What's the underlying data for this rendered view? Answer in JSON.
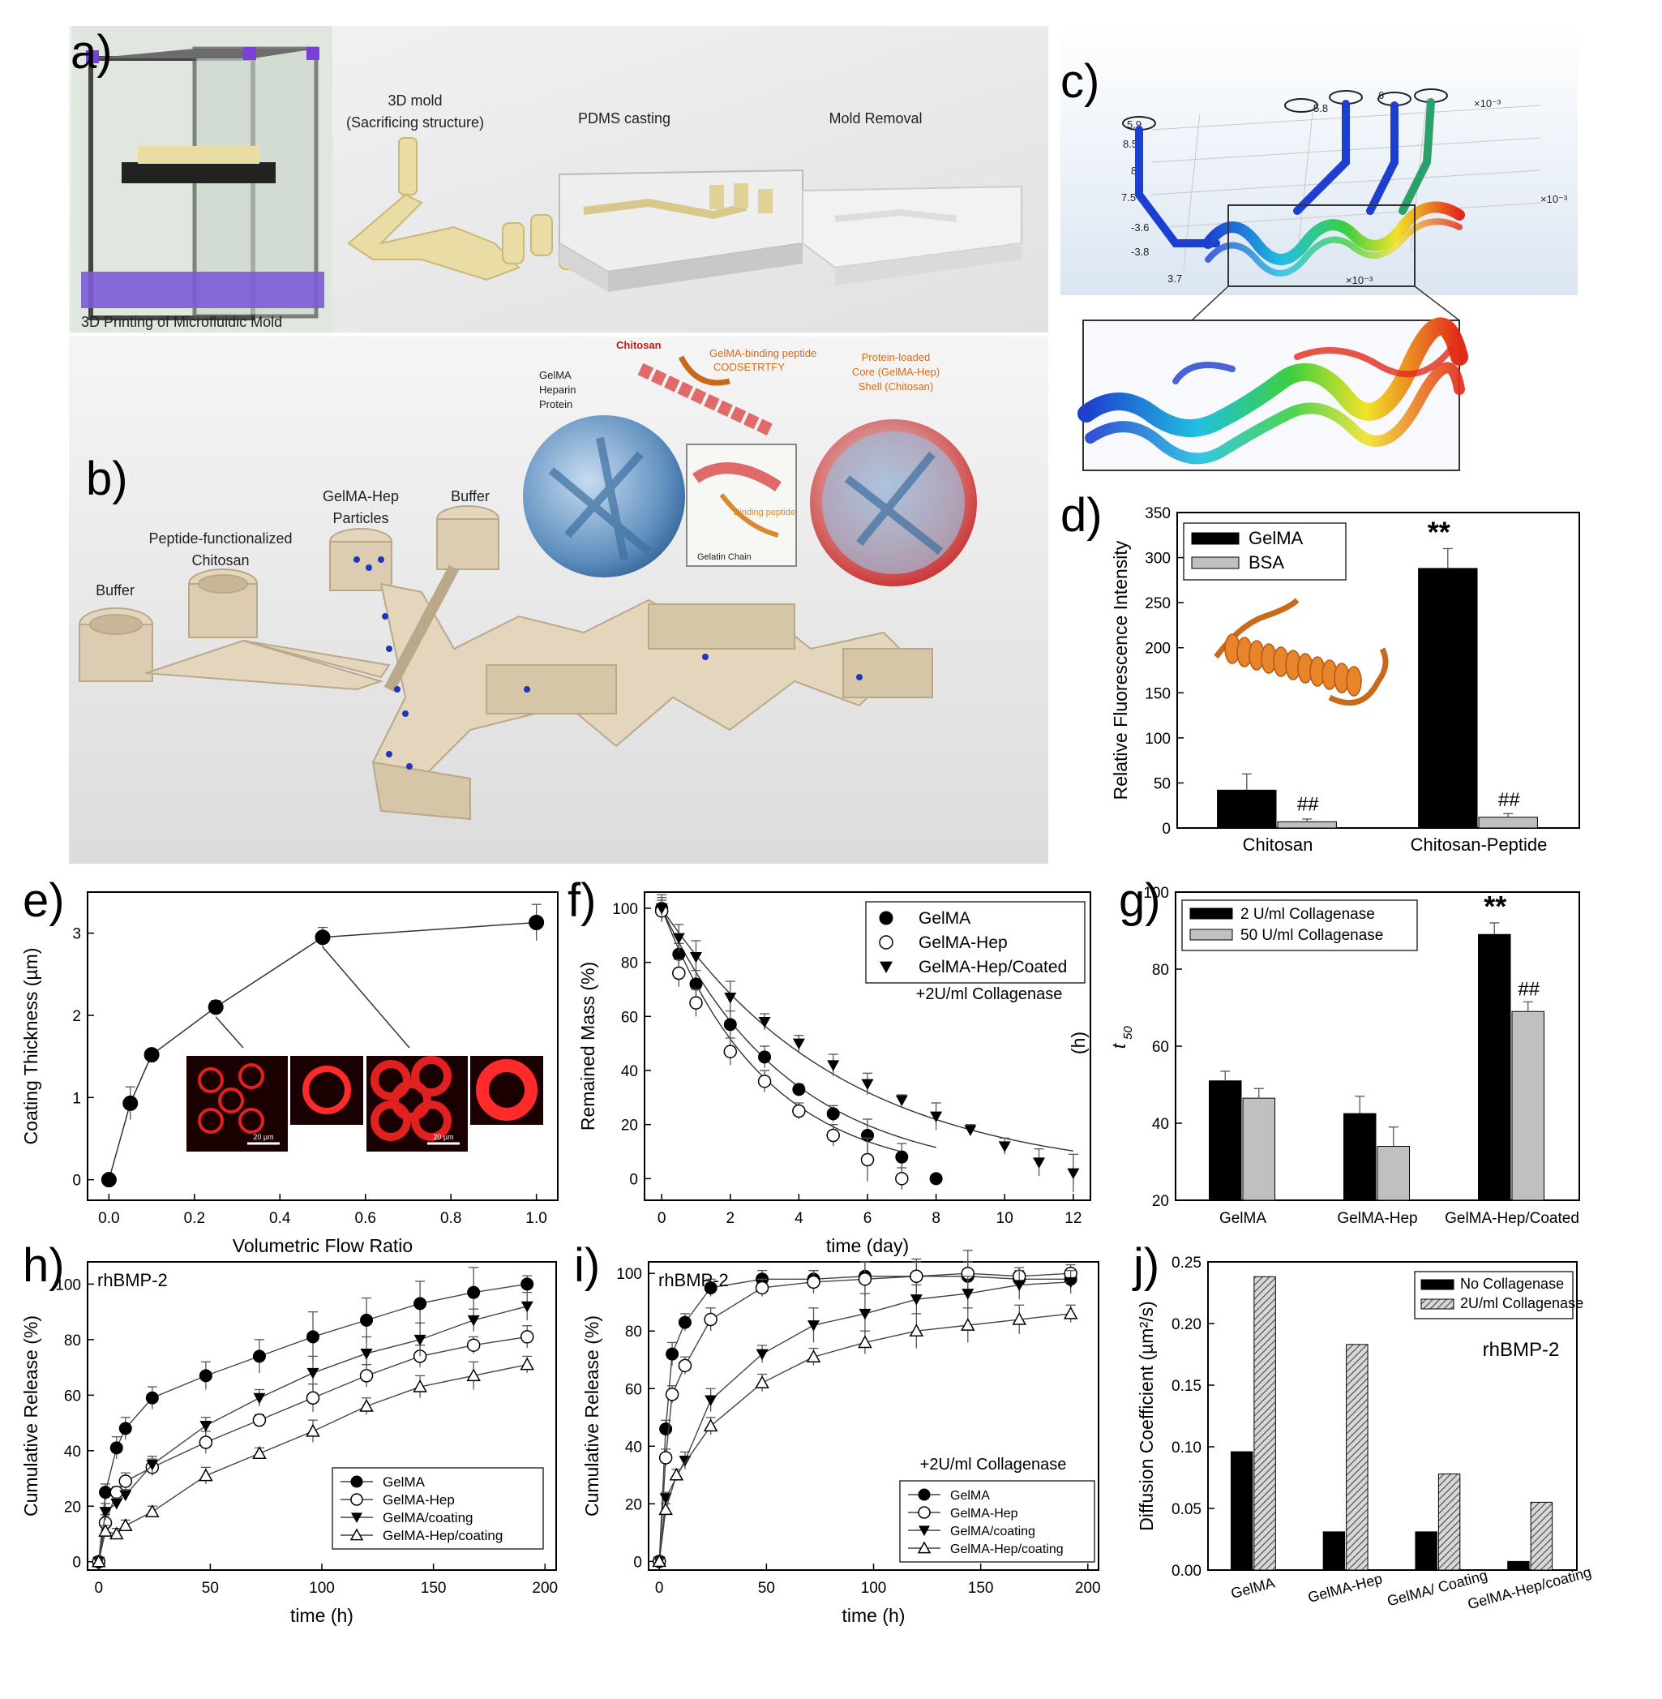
{
  "panels": {
    "a": {
      "letter": "a)",
      "captions": [
        "3D mold",
        "(Sacrificing structure)",
        "PDMS casting",
        "Mold Removal",
        "3D Printing of Microfluidic Mold"
      ]
    },
    "b": {
      "letter": "b)",
      "inlets": [
        "Buffer",
        "Peptide-functionalized",
        "Chitosan",
        "GelMA-Hep",
        "Particles",
        "Buffer"
      ],
      "labels": [
        "Chitosan",
        "GelMA-binding peptide",
        "CODSETRTFY",
        "GelMA",
        "Heparin",
        "Protein",
        "Protein-loaded",
        "Core (GelMA-Hep)",
        "Shell (Chitosan)",
        "Binding peptide",
        "Gelatin Chain"
      ]
    },
    "c": {
      "letter": "c)",
      "axis_marks": [
        "5.9",
        "5.8",
        "6",
        "8.5",
        "8",
        "7.5",
        "-3.6",
        "-3.8",
        "3.7",
        "×10⁻³",
        "×10⁻³",
        "×10⁻³"
      ]
    }
  },
  "chart_data": [
    {
      "id": "d",
      "letter": "d)",
      "type": "bar",
      "categories": [
        "Chitosan",
        "Chitosan-Peptide"
      ],
      "series": [
        {
          "name": "GelMA",
          "values": [
            42,
            288
          ],
          "errors": [
            18,
            22
          ],
          "color": "#000000"
        },
        {
          "name": "BSA",
          "values": [
            7,
            12
          ],
          "errors": [
            3,
            4
          ],
          "color": "#c0c0c0"
        }
      ],
      "ylabel": "Relative Fluorescence Intensity",
      "ylim": [
        0,
        350
      ],
      "yticks": [
        0,
        50,
        100,
        150,
        200,
        250,
        300,
        350
      ],
      "annotations": [
        "**",
        "##",
        "##"
      ],
      "legend": "top-left"
    },
    {
      "id": "e",
      "letter": "e)",
      "type": "line",
      "x": [
        0,
        0.05,
        0.1,
        0.25,
        0.5,
        1.0
      ],
      "y": [
        0,
        0.93,
        1.52,
        2.1,
        2.95,
        3.13
      ],
      "yerr": [
        0.03,
        0.2,
        0.05,
        0.08,
        0.12,
        0.22
      ],
      "xlabel": "Volumetric Flow Ratio",
      "ylabel": "Coating Thickness (µm)",
      "xlim": [
        -0.05,
        1.05
      ],
      "ylim": [
        -0.25,
        3.5
      ],
      "xticks": [
        "0.0",
        "0.2",
        "0.4",
        "0.6",
        "0.8",
        "1.0"
      ],
      "yticks": [
        "0",
        "1",
        "2",
        "3"
      ],
      "scale_bars": [
        "20 µm",
        "20 µm"
      ]
    },
    {
      "id": "f",
      "letter": "f)",
      "type": "scatter",
      "xlabel": "time (day)",
      "ylabel": "Remained Mass (%)",
      "xlim": [
        -0.5,
        12.5
      ],
      "ylim": [
        -8,
        106
      ],
      "xticks": [
        "0",
        "2",
        "4",
        "6",
        "8",
        "10",
        "12"
      ],
      "yticks": [
        "0",
        "20",
        "40",
        "60",
        "80",
        "100"
      ],
      "annotation": "+2U/ml Collagenase",
      "legend": "top-right",
      "series": [
        {
          "name": "GelMA",
          "marker": "filled-circle",
          "x": [
            0,
            0.5,
            1,
            2,
            3,
            4,
            5,
            6,
            7,
            8
          ],
          "y": [
            100,
            83,
            72,
            57,
            45,
            33,
            24,
            16,
            8,
            0
          ],
          "yerr": [
            4,
            4,
            5,
            5,
            4,
            2,
            3,
            6,
            5,
            0
          ]
        },
        {
          "name": "GelMA-Hep",
          "marker": "open-circle",
          "x": [
            0,
            0.5,
            1,
            2,
            3,
            4,
            5,
            6,
            7
          ],
          "y": [
            99,
            76,
            65,
            47,
            36,
            25,
            16,
            7,
            0
          ],
          "yerr": [
            4,
            5,
            5,
            5,
            4,
            3,
            4,
            8,
            4
          ]
        },
        {
          "name": "GelMA-Hep/Coated",
          "marker": "filled-triangle-down",
          "x": [
            0,
            0.5,
            1,
            2,
            3,
            4,
            5,
            6,
            7,
            8,
            9,
            10,
            11,
            12
          ],
          "y": [
            100,
            89,
            82,
            67,
            58,
            50,
            42,
            35,
            29,
            23,
            18,
            12,
            6,
            2
          ],
          "yerr": [
            5,
            5,
            6,
            6,
            3,
            3,
            4,
            4,
            2,
            5,
            2,
            3,
            5,
            7
          ]
        }
      ]
    },
    {
      "id": "g",
      "letter": "g)",
      "type": "bar",
      "categories": [
        "GelMA",
        "GelMA-Hep",
        "GelMA-Hep/Coated"
      ],
      "series": [
        {
          "name": "2  U/ml Collagenase",
          "values": [
            51,
            42.5,
            89
          ],
          "errors": [
            2.5,
            4.5,
            3
          ],
          "color": "#000000"
        },
        {
          "name": "50 U/ml Collagenase",
          "values": [
            46.5,
            34,
            69
          ],
          "errors": [
            2.5,
            5,
            2.5
          ],
          "color": "#c0c0c0"
        }
      ],
      "ylabel": "t50 (h)",
      "ylabel_main": "t",
      "ylabel_sub": "50",
      "ylabel_unit": "(h)",
      "ylim": [
        20,
        100
      ],
      "yticks": [
        20,
        40,
        60,
        80,
        100
      ],
      "annotations": [
        "**",
        "##"
      ],
      "legend": "top-left"
    },
    {
      "id": "h",
      "letter": "h)",
      "type": "scatter",
      "title": "rhBMP-2",
      "xlabel": "time (h)",
      "ylabel": "Cumulative Release (%)",
      "xlim": [
        -5,
        205
      ],
      "ylim": [
        -3,
        108
      ],
      "xticks": [
        "0",
        "50",
        "100",
        "150",
        "200"
      ],
      "yticks": [
        "0",
        "20",
        "40",
        "60",
        "80",
        "100"
      ],
      "legend": "bottom-right",
      "series": [
        {
          "name": "GelMA",
          "marker": "filled-circle",
          "x": [
            0,
            3,
            8,
            12,
            24,
            48,
            72,
            96,
            120,
            144,
            168,
            192
          ],
          "y": [
            0,
            25,
            41,
            48,
            59,
            67,
            74,
            81,
            87,
            93,
            97,
            100
          ],
          "yerr": [
            1,
            3,
            4,
            4,
            4,
            5,
            6,
            9,
            8,
            8,
            9,
            3
          ]
        },
        {
          "name": "GelMA-Hep",
          "marker": "open-circle",
          "x": [
            0,
            3,
            8,
            12,
            24,
            48,
            72,
            96,
            120,
            144,
            168,
            192
          ],
          "y": [
            0,
            14,
            25,
            29,
            34,
            43,
            51,
            59,
            67,
            74,
            78,
            81
          ],
          "yerr": [
            1,
            3,
            2,
            3,
            3,
            4,
            2,
            5,
            4,
            4,
            3,
            4
          ]
        },
        {
          "name": "GelMA/coating",
          "marker": "filled-triangle-down",
          "x": [
            0,
            3,
            8,
            12,
            24,
            48,
            72,
            96,
            120,
            144,
            168,
            192
          ],
          "y": [
            0,
            18,
            21,
            24,
            35,
            49,
            59,
            68,
            75,
            80,
            87,
            92
          ],
          "yerr": [
            1,
            3,
            2,
            2,
            3,
            3,
            3,
            6,
            6,
            6,
            4,
            5
          ]
        },
        {
          "name": "GelMA-Hep/coating",
          "marker": "open-triangle",
          "x": [
            0,
            3,
            8,
            12,
            24,
            48,
            72,
            96,
            120,
            144,
            168,
            192
          ],
          "y": [
            0,
            11,
            10,
            13,
            18,
            31,
            39,
            47,
            56,
            63,
            67,
            71
          ],
          "yerr": [
            1,
            2,
            2,
            2,
            2,
            3,
            2,
            4,
            3,
            4,
            5,
            3
          ]
        }
      ]
    },
    {
      "id": "i",
      "letter": "i)",
      "type": "scatter",
      "title": "rhBMP-2",
      "xlabel": "time (h)",
      "ylabel": "Cumulative Release (%)",
      "xlim": [
        -5,
        205
      ],
      "ylim": [
        -3,
        104
      ],
      "xticks": [
        "0",
        "50",
        "100",
        "150",
        "200"
      ],
      "yticks": [
        "0",
        "20",
        "40",
        "60",
        "80",
        "100"
      ],
      "annotation": "+2U/ml Collagenase",
      "legend": "bottom-right",
      "series": [
        {
          "name": "GelMA",
          "marker": "filled-circle",
          "x": [
            0,
            3,
            6,
            12,
            24,
            48,
            72,
            96,
            120,
            144,
            168,
            192
          ],
          "y": [
            0,
            46,
            72,
            83,
            95,
            98,
            98,
            99,
            99,
            99,
            98,
            98
          ],
          "yerr": [
            1,
            3,
            4,
            3,
            3,
            3,
            3,
            5,
            6,
            5,
            3,
            3
          ]
        },
        {
          "name": "GelMA-Hep",
          "marker": "open-circle",
          "x": [
            0,
            3,
            6,
            12,
            24,
            48,
            72,
            96,
            120,
            144,
            168,
            192
          ],
          "y": [
            0,
            36,
            58,
            68,
            84,
            95,
            97,
            98,
            99,
            100,
            99,
            100
          ],
          "yerr": [
            1,
            3,
            3,
            3,
            4,
            3,
            4,
            6,
            5,
            8,
            3,
            3
          ]
        },
        {
          "name": "GelMA/coating",
          "marker": "filled-triangle-down",
          "x": [
            0,
            3,
            12,
            24,
            48,
            72,
            96,
            120,
            144,
            168,
            192
          ],
          "y": [
            0,
            22,
            35,
            56,
            72,
            82,
            86,
            91,
            93,
            96,
            97
          ],
          "yerr": [
            1,
            2,
            3,
            4,
            3,
            6,
            7,
            5,
            6,
            5,
            4
          ]
        },
        {
          "name": "GelMA-Hep/coating",
          "marker": "open-triangle",
          "x": [
            0,
            3,
            8,
            24,
            48,
            72,
            96,
            120,
            144,
            168,
            192
          ],
          "y": [
            0,
            18,
            30,
            47,
            62,
            71,
            76,
            80,
            82,
            84,
            86
          ],
          "yerr": [
            1,
            2,
            2,
            3,
            3,
            3,
            4,
            6,
            6,
            5,
            3
          ]
        }
      ]
    },
    {
      "id": "j",
      "letter": "j)",
      "type": "bar",
      "title": "rhBMP-2",
      "categories": [
        "GelMA",
        "GelMA-Hep",
        "GelMA/ Coating",
        "GelMA-Hep/coating"
      ],
      "series": [
        {
          "name": "No Collagenase",
          "values": [
            0.096,
            0.031,
            0.031,
            0.007
          ],
          "color": "#000000"
        },
        {
          "name": "2U/ml Collagenase",
          "values": [
            0.238,
            0.183,
            0.078,
            0.055
          ],
          "color": "#9a9a9a"
        }
      ],
      "ylabel": "Diffusion Coefficient (µm²/s)",
      "ylim": [
        0,
        0.25
      ],
      "yticks": [
        "0.00",
        "0.05",
        "0.10",
        "0.15",
        "0.20",
        "0.25"
      ],
      "legend": "top-right"
    }
  ]
}
